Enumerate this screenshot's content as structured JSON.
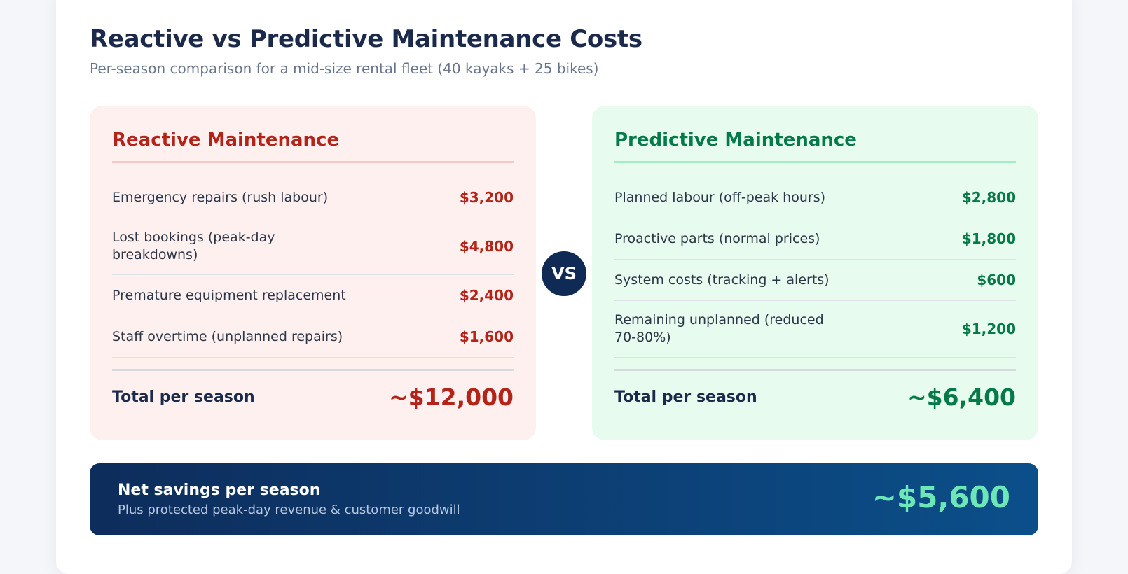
{
  "header": {
    "title": "Reactive vs Predictive Maintenance Costs",
    "subtitle": "Per-season comparison for a mid-size rental fleet (40 kayaks + 25 bikes)"
  },
  "reactive": {
    "heading": "Reactive Maintenance",
    "items": [
      {
        "label": "Emergency repairs (rush labour)",
        "value": "$3,200"
      },
      {
        "label": "Lost bookings (peak-day breakdowns)",
        "value": "$4,800"
      },
      {
        "label": "Premature equipment replacement",
        "value": "$2,400"
      },
      {
        "label": "Staff overtime (unplanned repairs)",
        "value": "$1,600"
      }
    ],
    "total_label": "Total per season",
    "total_value": "~$12,000"
  },
  "vs_label": "VS",
  "predictive": {
    "heading": "Predictive Maintenance",
    "items": [
      {
        "label": "Planned labour (off-peak hours)",
        "value": "$2,800"
      },
      {
        "label": "Proactive parts (normal prices)",
        "value": "$1,800"
      },
      {
        "label": "System costs (tracking + alerts)",
        "value": "$600"
      },
      {
        "label": "Remaining unplanned (reduced 70-80%)",
        "value": "$1,200"
      }
    ],
    "total_label": "Total per season",
    "total_value": "~$6,400"
  },
  "savings": {
    "title": "Net savings per season",
    "subtitle": "Plus protected peak-day revenue & customer goodwill",
    "value": "~$5,600"
  },
  "colors": {
    "reactive_accent": "#b42318",
    "predictive_accent": "#047a48",
    "savings_accent": "#6ee7b7",
    "navy": "#0e2a55"
  }
}
